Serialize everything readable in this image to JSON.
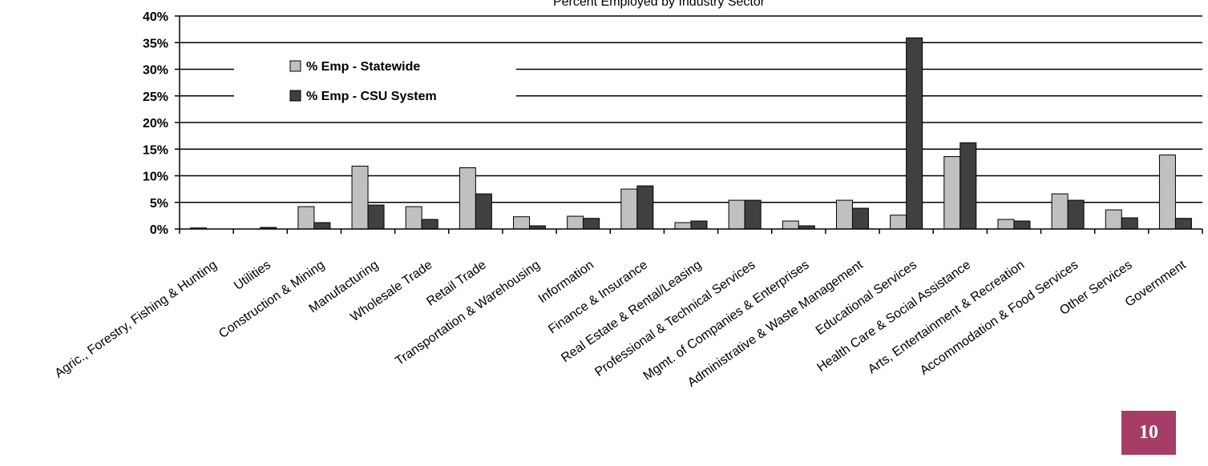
{
  "chart_data": {
    "type": "bar",
    "title": "Percent Employed by Industry Sector",
    "xlabel": "",
    "ylabel": "",
    "ylim": [
      0,
      40
    ],
    "y_ticks": [
      "0%",
      "5%",
      "10%",
      "15%",
      "20%",
      "25%",
      "30%",
      "35%",
      "40%"
    ],
    "grid": true,
    "legend_position": "top-left",
    "categories": [
      "Agric., Forestry, Fishing & Hunting",
      "Utilities",
      "Construction & Mining",
      "Manufacturing",
      "Wholesale Trade",
      "Retail Trade",
      "Transportation & Warehousing",
      "Information",
      "Finance & Insurance",
      "Real Estate & Rental/Leasing",
      "Professional & Technical Services",
      "Mgmt. of Companies & Enterprises",
      "Administrative & Waste Management",
      "Educational Services",
      "Health Care & Social Assistance",
      "Arts, Entertainment & Recreation",
      "Accommodation & Food Services",
      "Other Services",
      "Government"
    ],
    "series": [
      {
        "name": "% Emp - Statewide",
        "color": "#c0c0c0",
        "values": [
          0.2,
          0.0,
          4.2,
          11.8,
          4.2,
          11.5,
          2.3,
          2.4,
          7.5,
          1.2,
          5.4,
          1.5,
          5.4,
          2.6,
          13.6,
          1.8,
          6.6,
          3.6,
          13.9
        ]
      },
      {
        "name": "% Emp - CSU System",
        "color": "#404040",
        "values": [
          0.0,
          0.3,
          1.2,
          4.5,
          1.8,
          6.6,
          0.6,
          2.0,
          8.1,
          1.5,
          5.4,
          0.6,
          3.9,
          35.9,
          16.2,
          1.5,
          5.4,
          2.1,
          2.0
        ]
      }
    ]
  },
  "page_number": "10",
  "page_badge_color": "#a63d66"
}
